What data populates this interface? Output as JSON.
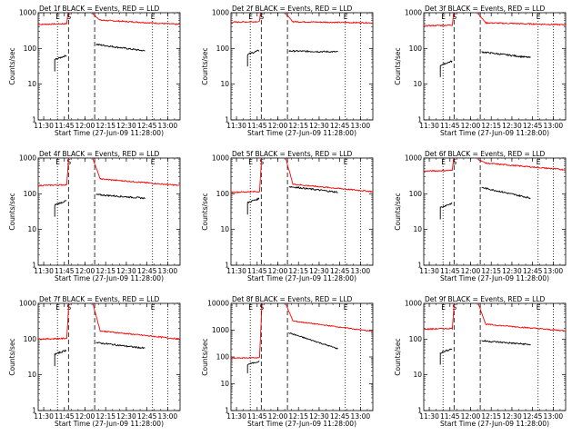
{
  "chart_data": {
    "type": "line",
    "yscale": "log",
    "ylim": [
      1,
      1000
    ],
    "ytick_values": [
      1,
      10,
      100,
      1000
    ],
    "ytick_labels": [
      "1",
      "10",
      "100",
      "1000"
    ],
    "xtick_labels": [
      "11:30",
      "11:45",
      "12:00",
      "12:15",
      "12:30",
      "12:45",
      "13:00"
    ],
    "xlim": [
      "11:26",
      "13:09"
    ],
    "ylabel": "Counts/sec",
    "xlabel": "Start Time (27-Jun-09 11:28:00)",
    "series_colors": {
      "events": "#000000",
      "lld": "#ff0000"
    },
    "markers": [
      {
        "label": "E",
        "time": "11:40",
        "style": "dotted"
      },
      {
        "label": "S",
        "time": "11:48",
        "style": "dashed"
      },
      {
        "label": "",
        "time": "12:07",
        "style": "dashed"
      },
      {
        "label": "E",
        "time": "12:49",
        "style": "dotted"
      },
      {
        "label": "",
        "time": "13:00",
        "style": "dotted"
      }
    ],
    "panels": [
      {
        "title": "Det 1f BLACK = Events, RED = LLD",
        "lld_pre": 470,
        "lld_post": 620,
        "lld_end": 470,
        "evt_pre": 65,
        "evt_post": 130,
        "evt_end": 85,
        "lld_spike": 1000
      },
      {
        "title": "Det 2f BLACK = Events, RED = LLD",
        "lld_pre": 540,
        "lld_post": 560,
        "lld_end": 520,
        "evt_pre": 90,
        "evt_post": 85,
        "evt_end": 80,
        "lld_spike": 1000
      },
      {
        "title": "Det 3f BLACK = Events, RED = LLD",
        "lld_pre": 430,
        "lld_post": 520,
        "lld_end": 460,
        "evt_pre": 45,
        "evt_post": 80,
        "evt_end": 55,
        "lld_spike": 1000
      },
      {
        "title": "Det 4f BLACK = Events, RED = LLD",
        "lld_pre": 170,
        "lld_post": 260,
        "lld_end": 170,
        "evt_pre": 65,
        "evt_post": 95,
        "evt_end": 75,
        "lld_spike": 1000
      },
      {
        "title": "Det 5f BLACK = Events, RED = LLD",
        "lld_pre": 110,
        "lld_post": 185,
        "lld_end": 115,
        "evt_pre": 75,
        "evt_post": 160,
        "evt_end": 110,
        "lld_spike": 1000
      },
      {
        "title": "Det 6f BLACK = Events, RED = LLD",
        "lld_pre": 430,
        "lld_post": 720,
        "lld_end": 470,
        "evt_pre": 55,
        "evt_post": 150,
        "evt_end": 75,
        "lld_spike": 1000
      },
      {
        "title": "Det 7f BLACK = Events, RED = LLD",
        "lld_pre": 100,
        "lld_post": 170,
        "lld_end": 100,
        "evt_pre": 50,
        "evt_post": 80,
        "evt_end": 55,
        "lld_spike": 1000
      },
      {
        "title": "Det 8f BLACK = Events, RED = LLD",
        "lld_pre": 90,
        "lld_post": 2200,
        "lld_end": 900,
        "evt_pre": 70,
        "evt_post": 800,
        "evt_end": 200,
        "lld_spike": 10000
      },
      {
        "title": "Det 9f BLACK = Events, RED = LLD",
        "lld_pre": 190,
        "lld_post": 260,
        "lld_end": 170,
        "evt_pre": 55,
        "evt_post": 90,
        "evt_end": 70,
        "lld_spike": 1000
      }
    ]
  }
}
